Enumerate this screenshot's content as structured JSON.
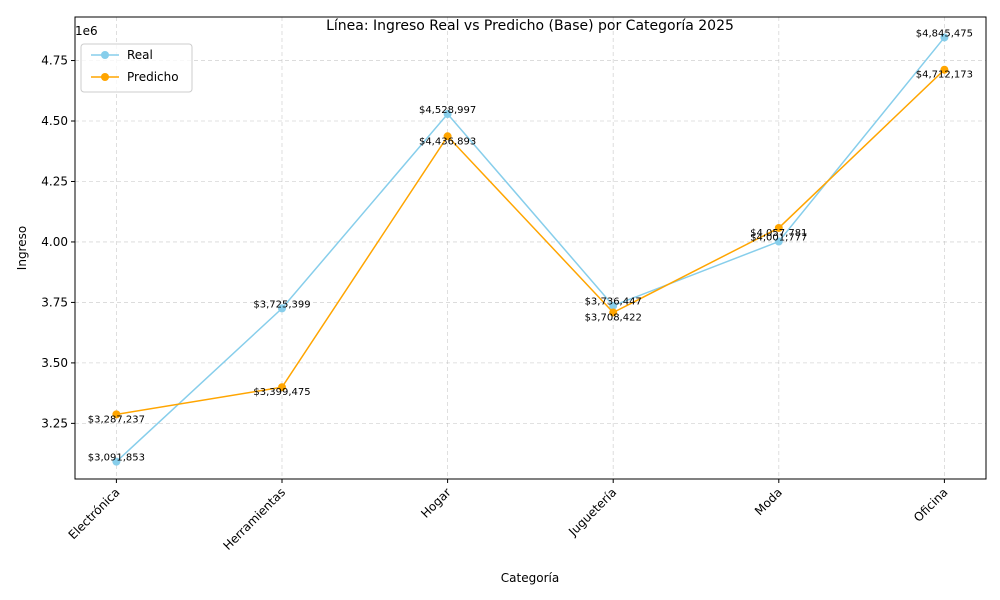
{
  "chart_data": {
    "type": "line",
    "title": "Línea: Ingreso Real vs Predicho (Base) por Categoría 2025",
    "xlabel": "Categoría",
    "ylabel": "Ingreso",
    "y_offset_label": "1e6",
    "categories": [
      "Electrónica",
      "Herramientas",
      "Hogar",
      "Juguetería",
      "Moda",
      "Oficina"
    ],
    "ylim": [
      3020000,
      4930000
    ],
    "yticks": [
      3.25,
      3.5,
      3.75,
      4.0,
      4.25,
      4.5,
      4.75
    ],
    "ytick_labels": [
      "3.25",
      "3.50",
      "3.75",
      "4.00",
      "4.25",
      "4.50",
      "4.75"
    ],
    "grid": true,
    "legend_position": "top-left",
    "series": [
      {
        "name": "Real",
        "color": "#87ceeb",
        "values": [
          3091853,
          3725399,
          4528997,
          3736447,
          4001777,
          4845475
        ],
        "labels": [
          "$3,091,853",
          "$3,725,399",
          "$4,528,997",
          "$3,736,447",
          "$4,001,777",
          "$4,845,475"
        ]
      },
      {
        "name": "Predicho",
        "color": "#ffa500",
        "values": [
          3287237,
          3399475,
          4436893,
          3708422,
          4057781,
          4712173
        ],
        "labels": [
          "$3,287,237",
          "$3,399,475",
          "$4,436,893",
          "$3,708,422",
          "$4,057,781",
          "$4,712,173"
        ]
      }
    ]
  }
}
